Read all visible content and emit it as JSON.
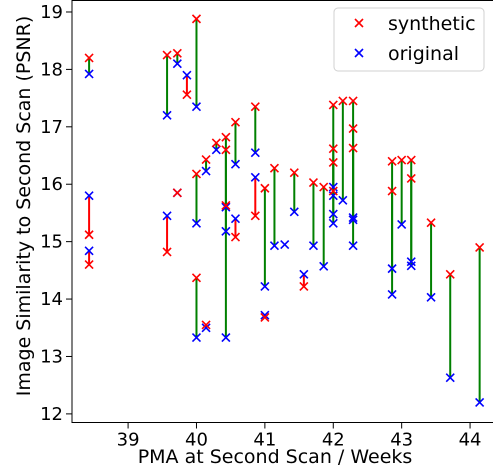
{
  "chart_data": {
    "type": "scatter",
    "xlabel": "PMA at Second Scan / Weeks",
    "ylabel": "Image Similarity to Second Scan (PSNR)",
    "xlim": [
      38.18,
      44.35
    ],
    "ylim": [
      11.85,
      19.2
    ],
    "xticks": [
      "39",
      "40",
      "41",
      "42",
      "43",
      "44"
    ],
    "yticks": [
      "12",
      "13",
      "14",
      "15",
      "16",
      "17",
      "18",
      "19"
    ],
    "grid": false,
    "legend_position": "top-right",
    "colors": {
      "synthetic": "#ff0000",
      "original": "#0000ff",
      "improved": "#008000",
      "worse": "#ff0000"
    },
    "series": [
      {
        "name": "synthetic",
        "marker": "x",
        "color": "#ff0000"
      },
      {
        "name": "original",
        "marker": "x",
        "color": "#0000ff"
      }
    ],
    "pairs": [
      {
        "x": 38.43,
        "synthetic": 18.2,
        "original": 17.92
      },
      {
        "x": 38.43,
        "synthetic": 15.12,
        "original": 15.8
      },
      {
        "x": 38.43,
        "synthetic": 14.6,
        "original": 14.84
      },
      {
        "x": 39.57,
        "synthetic": 18.25,
        "original": 17.2
      },
      {
        "x": 39.57,
        "synthetic": 14.82,
        "original": 15.45
      },
      {
        "x": 39.72,
        "synthetic": 18.28,
        "original": 18.1
      },
      {
        "x": 39.72,
        "synthetic": 15.85,
        "original": 15.85
      },
      {
        "x": 39.86,
        "synthetic": 17.56,
        "original": 17.9
      },
      {
        "x": 40.0,
        "synthetic": 18.88,
        "original": 17.35
      },
      {
        "x": 40.0,
        "synthetic": 16.18,
        "original": 15.32
      },
      {
        "x": 40.0,
        "synthetic": 14.37,
        "original": 13.33
      },
      {
        "x": 40.14,
        "synthetic": 16.43,
        "original": 16.23
      },
      {
        "x": 40.14,
        "synthetic": 13.55,
        "original": 13.5
      },
      {
        "x": 40.29,
        "synthetic": 16.72,
        "original": 16.6
      },
      {
        "x": 40.43,
        "synthetic": 16.82,
        "original": 15.6
      },
      {
        "x": 40.43,
        "synthetic": 16.6,
        "original": 15.18
      },
      {
        "x": 40.43,
        "synthetic": 15.63,
        "original": 13.33
      },
      {
        "x": 40.57,
        "synthetic": 17.08,
        "original": 16.35
      },
      {
        "x": 40.57,
        "synthetic": 15.08,
        "original": 15.4
      },
      {
        "x": 40.86,
        "synthetic": 17.35,
        "original": 16.55
      },
      {
        "x": 40.86,
        "synthetic": 15.45,
        "original": 16.12
      },
      {
        "x": 41.0,
        "synthetic": 15.93,
        "original": 14.22
      },
      {
        "x": 41.0,
        "synthetic": 13.68,
        "original": 13.72
      },
      {
        "x": 41.14,
        "synthetic": 16.28,
        "original": 14.93
      },
      {
        "x": 41.29,
        "synthetic": null,
        "original": 14.95
      },
      {
        "x": 41.43,
        "synthetic": 16.2,
        "original": 15.52
      },
      {
        "x": 41.57,
        "synthetic": 14.22,
        "original": 14.43
      },
      {
        "x": 41.71,
        "synthetic": 16.03,
        "original": 14.93
      },
      {
        "x": 41.86,
        "synthetic": 15.95,
        "original": 14.57
      },
      {
        "x": 42.0,
        "synthetic": 17.38,
        "original": 15.95
      },
      {
        "x": 42.0,
        "synthetic": 16.62,
        "original": 15.8
      },
      {
        "x": 42.0,
        "synthetic": 16.38,
        "original": 15.48
      },
      {
        "x": 42.0,
        "synthetic": 15.88,
        "original": 15.32
      },
      {
        "x": 42.14,
        "synthetic": 17.45,
        "original": 15.72
      },
      {
        "x": 42.29,
        "synthetic": 17.45,
        "original": 15.42
      },
      {
        "x": 42.29,
        "synthetic": 16.97,
        "original": 15.38
      },
      {
        "x": 42.29,
        "synthetic": 16.63,
        "original": 14.93
      },
      {
        "x": 42.86,
        "synthetic": 16.4,
        "original": 14.53
      },
      {
        "x": 42.86,
        "synthetic": 15.88,
        "original": 14.08
      },
      {
        "x": 43.0,
        "synthetic": 16.42,
        "original": 15.3
      },
      {
        "x": 43.14,
        "synthetic": 16.42,
        "original": 14.65
      },
      {
        "x": 43.14,
        "synthetic": 16.1,
        "original": 14.58
      },
      {
        "x": 43.43,
        "synthetic": 15.33,
        "original": 14.03
      },
      {
        "x": 43.71,
        "synthetic": 14.43,
        "original": 12.63
      },
      {
        "x": 44.14,
        "synthetic": 14.9,
        "original": 12.2
      }
    ]
  }
}
